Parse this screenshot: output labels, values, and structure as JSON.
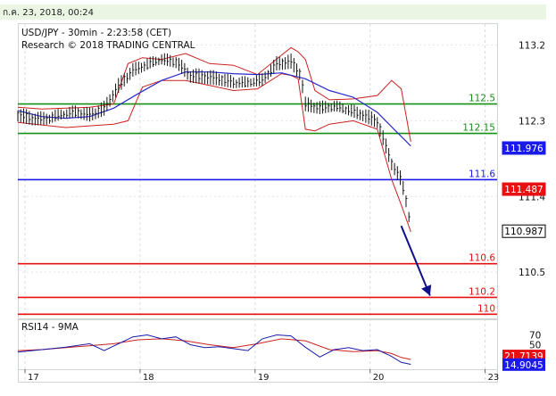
{
  "header": {
    "timestamp": "ก.ค. 23, 2018, 00:24"
  },
  "chart_data": {
    "type": "line",
    "title": "USD/JPY - 30min - 2:23:58 (CET)",
    "subtitle": "Research © 2018 TRADING CENTRAL",
    "price_axis": {
      "ylim": [
        109.95,
        113.45
      ],
      "ticks": [
        "113.2",
        "112.3",
        "111.4",
        "110.5"
      ],
      "tick_values": [
        113.2,
        112.3,
        111.4,
        110.5
      ]
    },
    "date_ticks": [
      "17",
      "18",
      "19",
      "20",
      "23"
    ],
    "date_tick_positions": [
      3,
      51,
      99,
      147,
      195
    ],
    "x_range": [
      0,
      200
    ],
    "levels": [
      {
        "value": 112.5,
        "label": "112.5",
        "color": "#159015"
      },
      {
        "value": 112.15,
        "label": "112.15",
        "color": "#159015"
      },
      {
        "value": 111.6,
        "label": "111.6",
        "color": "#1a1aee"
      },
      {
        "value": 110.6,
        "label": "110.6",
        "color": "#e81010"
      },
      {
        "value": 110.2,
        "label": "110.2",
        "color": "#e81010"
      },
      {
        "value": 110,
        "label": "110",
        "color": "#e81010"
      }
    ],
    "price_badges": [
      {
        "label": "111.976",
        "value": 111.976,
        "color": "#1a1aee"
      },
      {
        "label": "111.487",
        "value": 111.487,
        "color": "#e81010"
      },
      {
        "label": "110.987",
        "value": 110.987,
        "color": "#000000"
      }
    ],
    "forecast_arrow": {
      "from": [
        160,
        111.05
      ],
      "to": [
        172,
        110.22
      ],
      "color": "#10108a"
    },
    "price_series": {
      "x": [
        0,
        6,
        12,
        18,
        24,
        30,
        36,
        42,
        48,
        54,
        60,
        66,
        72,
        78,
        84,
        90,
        96,
        102,
        108,
        114,
        118,
        120,
        126,
        132,
        138,
        144,
        150,
        156,
        160,
        162,
        164
      ],
      "y": [
        112.38,
        112.33,
        112.32,
        112.36,
        112.4,
        112.37,
        112.45,
        112.72,
        112.9,
        112.96,
        113.02,
        113.0,
        112.84,
        112.83,
        112.8,
        112.75,
        112.74,
        112.78,
        112.98,
        113.01,
        112.86,
        112.5,
        112.45,
        112.46,
        112.42,
        112.37,
        112.3,
        111.8,
        111.6,
        111.35,
        111.05
      ]
    },
    "ma_series": {
      "x": [
        0,
        10,
        20,
        30,
        40,
        50,
        60,
        70,
        80,
        90,
        100,
        110,
        120,
        130,
        140,
        150,
        157,
        164
      ],
      "y": [
        112.42,
        112.35,
        112.33,
        112.35,
        112.45,
        112.62,
        112.78,
        112.88,
        112.88,
        112.86,
        112.85,
        112.87,
        112.8,
        112.66,
        112.58,
        112.4,
        112.2,
        112.0
      ]
    },
    "bollinger_upper": {
      "x": [
        0,
        10,
        20,
        30,
        40,
        46,
        52,
        60,
        70,
        80,
        90,
        100,
        110,
        114,
        117,
        120,
        124,
        130,
        140,
        150,
        156,
        160,
        164
      ],
      "y": [
        112.46,
        112.44,
        112.45,
        112.46,
        112.5,
        112.98,
        113.05,
        113.03,
        113.1,
        112.98,
        112.96,
        112.85,
        113.08,
        113.17,
        113.12,
        113.03,
        112.66,
        112.55,
        112.56,
        112.6,
        112.78,
        112.68,
        112.05
      ]
    },
    "bollinger_lower": {
      "x": [
        0,
        10,
        20,
        30,
        40,
        46,
        52,
        60,
        70,
        80,
        90,
        100,
        110,
        114,
        117,
        120,
        124,
        130,
        140,
        150,
        156,
        160,
        164
      ],
      "y": [
        112.28,
        112.25,
        112.22,
        112.24,
        112.26,
        112.3,
        112.7,
        112.78,
        112.78,
        112.72,
        112.66,
        112.68,
        112.86,
        112.84,
        112.8,
        112.2,
        112.18,
        112.26,
        112.3,
        112.2,
        111.6,
        111.3,
        110.98
      ]
    },
    "rsi_panel": {
      "title": "RSI14 - 9MA",
      "ylim": [
        0,
        100
      ],
      "ticks": [
        "70",
        "50"
      ],
      "tick_values": [
        70,
        50
      ],
      "badges": [
        {
          "label": "21.7139",
          "value": 21.7139,
          "color": "#e81010"
        },
        {
          "label": "14.9045",
          "value": 14.9045,
          "color": "#1a1aee"
        }
      ],
      "rsi": {
        "x": [
          0,
          10,
          20,
          30,
          36,
          42,
          48,
          54,
          60,
          66,
          72,
          78,
          84,
          90,
          96,
          102,
          108,
          114,
          120,
          126,
          132,
          138,
          144,
          150,
          156,
          160,
          164
        ],
        "y": [
          35,
          40,
          45,
          52,
          38,
          52,
          66,
          70,
          62,
          66,
          50,
          44,
          46,
          42,
          38,
          62,
          70,
          68,
          45,
          25,
          40,
          44,
          38,
          40,
          26,
          14,
          10
        ]
      },
      "ma": {
        "x": [
          0,
          10,
          20,
          30,
          40,
          50,
          60,
          70,
          80,
          90,
          100,
          110,
          120,
          130,
          140,
          150,
          156,
          160,
          164
        ],
        "y": [
          38,
          40,
          44,
          48,
          52,
          60,
          62,
          58,
          50,
          44,
          52,
          62,
          58,
          40,
          36,
          38,
          32,
          24,
          20
        ]
      }
    }
  }
}
